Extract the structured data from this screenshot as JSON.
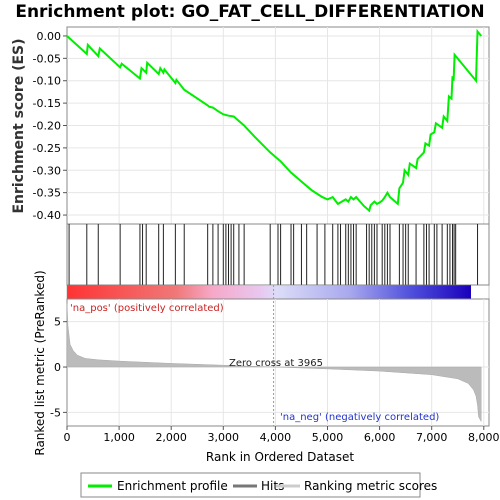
{
  "chart_data": [
    {
      "type": "line",
      "title": "Enrichment plot: GO_FAT_CELL_DIFFERENTIATION",
      "ylabel": "Enrichment score (ES)",
      "ylim": [
        -0.42,
        0.02
      ],
      "yticks": [
        0.0,
        -0.05,
        -0.1,
        -0.15,
        -0.2,
        -0.25,
        -0.3,
        -0.35,
        -0.4
      ],
      "ytick_labels": [
        "0.00",
        "-0.05",
        "-0.10",
        "-0.15",
        "-0.20",
        "-0.25",
        "-0.30",
        "-0.35",
        "-0.40"
      ],
      "xlim": [
        0,
        8100
      ],
      "grid": true,
      "series": [
        {
          "name": "Enrichment profile",
          "color": "#00ee00",
          "x": [
            0,
            380,
            400,
            600,
            630,
            1020,
            1050,
            1400,
            1430,
            1520,
            1540,
            1760,
            1790,
            1850,
            1870,
            2080,
            2100,
            2250,
            2700,
            2730,
            2800,
            2900,
            3000,
            3100,
            3200,
            3400,
            3600,
            3900,
            4100,
            4300,
            4500,
            4700,
            4900,
            5000,
            5100,
            5200,
            5350,
            5400,
            5450,
            5500,
            5550,
            5700,
            5800,
            5830,
            5900,
            5950,
            6000,
            6050,
            6100,
            6150,
            6200,
            6350,
            6380,
            6450,
            6480,
            6550,
            6580,
            6700,
            6730,
            6850,
            6880,
            6950,
            6980,
            7050,
            7080,
            7200,
            7230,
            7300,
            7330,
            7380,
            7400,
            7420,
            7440,
            7850,
            7880,
            7950
          ],
          "values": [
            0.0,
            -0.04,
            -0.02,
            -0.045,
            -0.028,
            -0.07,
            -0.062,
            -0.095,
            -0.072,
            -0.082,
            -0.06,
            -0.085,
            -0.072,
            -0.082,
            -0.075,
            -0.105,
            -0.098,
            -0.12,
            -0.155,
            -0.158,
            -0.16,
            -0.168,
            -0.175,
            -0.178,
            -0.18,
            -0.2,
            -0.225,
            -0.26,
            -0.28,
            -0.305,
            -0.325,
            -0.345,
            -0.36,
            -0.365,
            -0.36,
            -0.375,
            -0.365,
            -0.37,
            -0.36,
            -0.365,
            -0.36,
            -0.38,
            -0.39,
            -0.378,
            -0.37,
            -0.375,
            -0.372,
            -0.368,
            -0.36,
            -0.35,
            -0.36,
            -0.375,
            -0.34,
            -0.328,
            -0.3,
            -0.31,
            -0.285,
            -0.295,
            -0.275,
            -0.26,
            -0.24,
            -0.245,
            -0.22,
            -0.215,
            -0.195,
            -0.205,
            -0.18,
            -0.19,
            -0.135,
            -0.14,
            -0.09,
            -0.1,
            -0.042,
            -0.1,
            0.01,
            0.0
          ]
        }
      ]
    },
    {
      "type": "scatter",
      "name": "Hits",
      "xlim": [
        0,
        8100
      ],
      "hits": [
        40,
        380,
        600,
        1020,
        1400,
        1450,
        1520,
        1760,
        1850,
        2080,
        2250,
        2700,
        2800,
        2900,
        3000,
        3050,
        3100,
        3150,
        3200,
        3300,
        3400,
        3900,
        4050,
        4100,
        4300,
        4350,
        4500,
        4600,
        4800,
        4950,
        5100,
        5200,
        5250,
        5350,
        5400,
        5450,
        5500,
        5550,
        5750,
        5800,
        5850,
        5900,
        5950,
        6050,
        6100,
        6150,
        6200,
        6380,
        6450,
        6500,
        6550,
        6700,
        6850,
        6900,
        6950,
        7050,
        7100,
        7200,
        7300,
        7350,
        7400,
        7430,
        7460,
        7880
      ]
    },
    {
      "type": "area",
      "ylabel": "Ranked list metric (PreRanked)",
      "xlabel": "Rank in Ordered Dataset",
      "xlim": [
        0,
        8100
      ],
      "ylim": [
        -6.5,
        7.5
      ],
      "xticks": [
        0,
        1000,
        2000,
        3000,
        4000,
        5000,
        6000,
        7000,
        8000
      ],
      "xtick_labels": [
        "0",
        "1,000",
        "2,000",
        "3,000",
        "4,000",
        "5,000",
        "6,000",
        "7,000",
        "8,000"
      ],
      "yticks": [
        5,
        0,
        -5
      ],
      "ytick_labels": [
        "5",
        "0",
        "-5"
      ],
      "x": [
        0,
        20,
        60,
        120,
        200,
        350,
        600,
        1000,
        2000,
        3000,
        3965,
        5000,
        6000,
        7000,
        7500,
        7700,
        7800,
        7850,
        7880,
        7900,
        7950
      ],
      "values": [
        7.0,
        4.5,
        2.5,
        1.8,
        1.3,
        0.95,
        0.8,
        0.65,
        0.4,
        0.2,
        0.0,
        -0.2,
        -0.45,
        -0.85,
        -1.3,
        -1.8,
        -2.5,
        -3.2,
        -4.2,
        -5.5,
        -6.0
      ],
      "annotations": {
        "pos": "'na_pos' (positively correlated)",
        "neg": "'na_neg' (negatively correlated)",
        "zero": "Zero cross at 3965"
      }
    }
  ],
  "legend": {
    "items": [
      {
        "label": "Enrichment profile",
        "color": "#00ee00"
      },
      {
        "label": "Hits",
        "color": "#777777"
      },
      {
        "label": "Ranking metric scores",
        "color": "#cccccc"
      }
    ]
  }
}
